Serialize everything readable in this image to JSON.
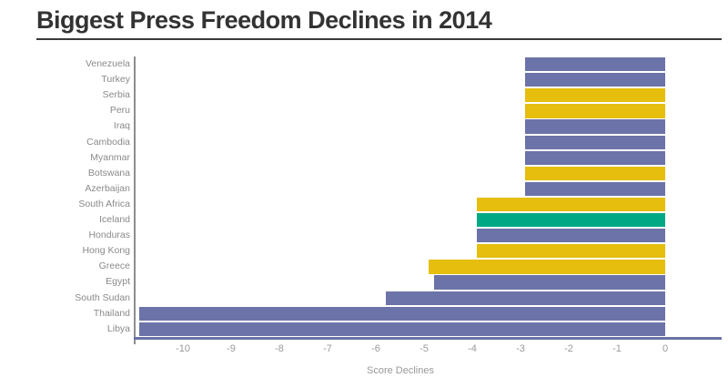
{
  "title": "Biggest Press Freedom Declines in 2014",
  "chart_data": {
    "type": "bar",
    "orientation": "horizontal",
    "title": "Biggest Press Freedom Declines in 2014",
    "xlabel": "Score Declines",
    "xlim": [
      -11,
      0
    ],
    "x_ticks": [
      -10,
      -9,
      -8,
      -7,
      -6,
      -5,
      -4,
      -3,
      -2,
      -1,
      0
    ],
    "grid": false,
    "legend": false,
    "categories": [
      "Venezuela",
      "Turkey",
      "Serbia",
      "Peru",
      "Iraq",
      "Cambodia",
      "Myanmar",
      "Botswana",
      "Azerbaijan",
      "South Africa",
      "Iceland",
      "Honduras",
      "Hong Kong",
      "Greece",
      "Egypt",
      "South Sudan",
      "Thailand",
      "Libya"
    ],
    "values": [
      -2.9,
      -2.9,
      -2.9,
      -2.9,
      -2.9,
      -2.9,
      -2.9,
      -2.9,
      -2.9,
      -3.9,
      -3.9,
      -3.9,
      -3.9,
      -4.9,
      -4.8,
      -5.8,
      -10.9,
      -10.9
    ],
    "bar_colors": [
      "purple",
      "purple",
      "gold",
      "gold",
      "purple",
      "purple",
      "purple",
      "gold",
      "purple",
      "gold",
      "green",
      "purple",
      "gold",
      "gold",
      "purple",
      "purple",
      "purple",
      "purple"
    ],
    "palette": {
      "purple": "#6C73A8",
      "gold": "#E5BE0E",
      "green": "#00A983"
    }
  },
  "colors": {
    "background": "#ffffff",
    "title_text": "#333333",
    "title_underline": "#3a3a3a",
    "axis_line": "#8e8e8e",
    "baseline": "#6A72A4",
    "tick_text": "#999999",
    "label_text": "#8a8a8a"
  }
}
